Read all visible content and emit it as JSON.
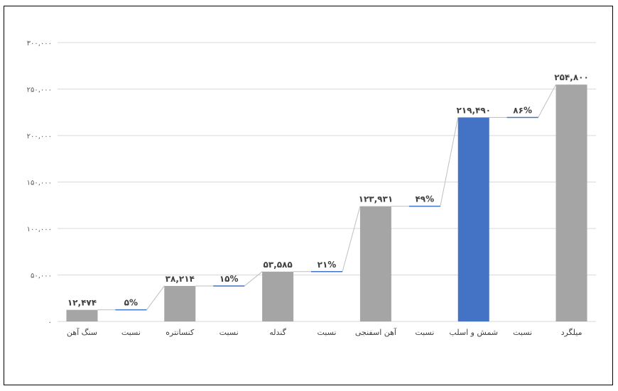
{
  "chart_data": {
    "type": "bar",
    "subtype": "waterfall",
    "title": "",
    "xlabel": "",
    "ylabel": "",
    "ylim": [
      0,
      300000
    ],
    "yticks": [
      0,
      50000,
      100000,
      150000,
      200000,
      250000,
      300000
    ],
    "ytick_labels": [
      "۰",
      "۵۰,۰۰۰",
      "۱۰۰,۰۰۰",
      "۱۵۰,۰۰۰",
      "۲۰۰,۰۰۰",
      "۲۵۰,۰۰۰",
      "۳۰۰,۰۰۰"
    ],
    "grid": true,
    "legend": "none",
    "categories": [
      "سنگ آهن",
      "نسبت",
      "کنسانتره",
      "نسبت",
      "گندله",
      "نسبت",
      "آهن اسفنجی",
      "نسبت",
      "شمش و اسلب",
      "نسبت",
      "میلگرد"
    ],
    "kinds": [
      "bar",
      "ratio",
      "bar",
      "ratio",
      "bar",
      "ratio",
      "bar",
      "ratio",
      "bar",
      "ratio",
      "bar"
    ],
    "values": [
      12474,
      12474,
      38214,
      38214,
      53585,
      53585,
      123931,
      123931,
      219490,
      219490,
      254800
    ],
    "labels": [
      "۱۲,۴۷۴",
      "۵%",
      "۳۸,۲۱۴",
      "۱۵%",
      "۵۳,۵۸۵",
      "۲۱%",
      "۱۲۳,۹۳۱",
      "۴۹%",
      "۲۱۹,۴۹۰",
      "۸۶%",
      "۲۵۴,۸۰۰"
    ],
    "colors": [
      "#a5a5a5",
      "#4472c4",
      "#a5a5a5",
      "#4472c4",
      "#a5a5a5",
      "#4472c4",
      "#a5a5a5",
      "#4472c4",
      "#4472c4",
      "#4472c4",
      "#a5a5a5"
    ],
    "gridline_color": "#d9d9d9",
    "connector_color": "#bfbfbf"
  }
}
